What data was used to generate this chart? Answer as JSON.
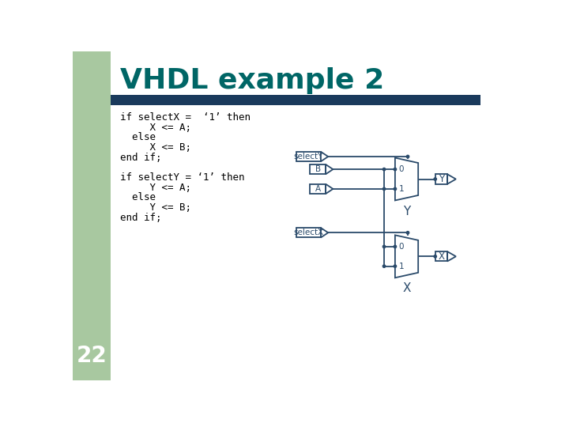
{
  "title": "VHDL example 2",
  "title_color": "#006666",
  "title_fontsize": 26,
  "background_color": "#ffffff",
  "slide_bg_left": "#a8c8a0",
  "header_bar_color": "#1a3a5c",
  "code_lines": [
    "if selectX =  ‘1’ then",
    "     X <= A;",
    "  else",
    "     X <= B;",
    "end if;",
    "",
    "if selectY = ‘1’ then",
    "     Y <= A;",
    "  else",
    "     Y <= B;",
    "end if;"
  ],
  "code_color": "#000000",
  "code_fontsize": 9.0,
  "diagram_color": "#2a4a6a",
  "page_number": "22",
  "page_number_color": "#ffffff",
  "page_number_fontsize": 20
}
